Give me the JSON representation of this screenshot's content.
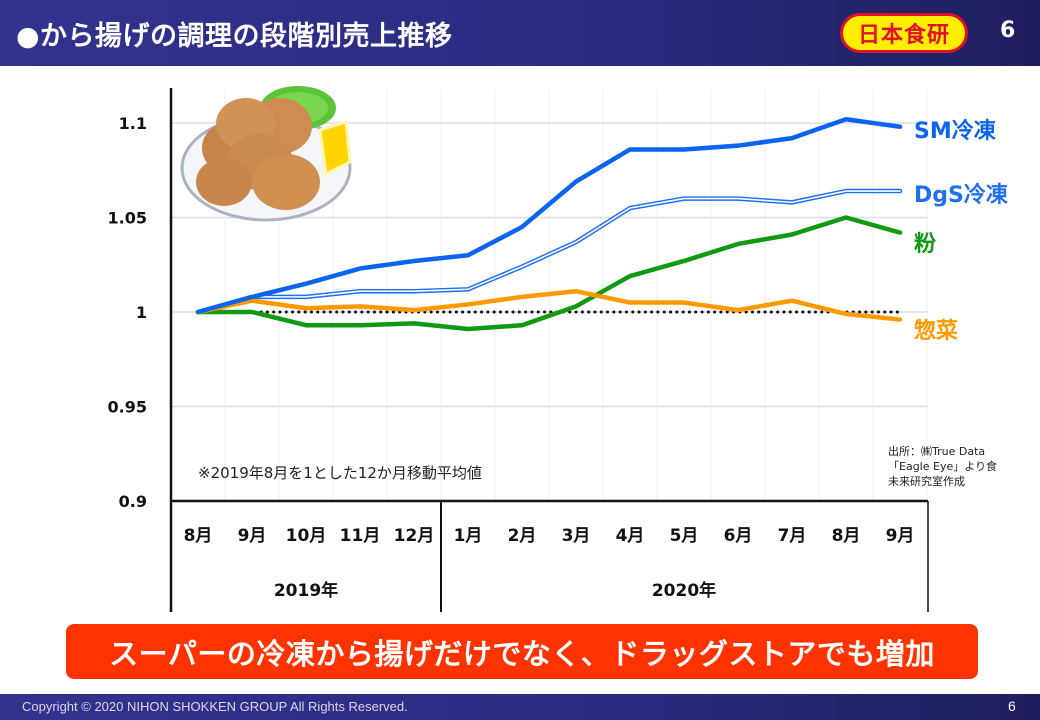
{
  "header": {
    "title": "●から揚げの調理の段階別売上推移",
    "logo_text": "日本食研",
    "page_number": "6"
  },
  "chart_data": {
    "type": "line",
    "title": "から揚げの調理の段階別売上推移",
    "xlabel": "",
    "ylabel": "",
    "ylim": [
      0.9,
      1.1
    ],
    "yticks": [
      0.9,
      0.95,
      1,
      1.05,
      1.1
    ],
    "ytick_labels": [
      "0.9",
      "0.95",
      "1",
      "1.05",
      "1.1"
    ],
    "grid": true,
    "categories": [
      "8月",
      "9月",
      "10月",
      "11月",
      "12月",
      "1月",
      "2月",
      "3月",
      "4月",
      "5月",
      "6月",
      "7月",
      "8月",
      "9月"
    ],
    "year_groups": [
      {
        "label": "2019年",
        "span": 5
      },
      {
        "label": "2020年",
        "span": 9
      }
    ],
    "baseline": 1.0,
    "series": [
      {
        "name": "SM冷凍",
        "color": "#0a64f0",
        "style": "thick",
        "values": [
          1.0,
          1.008,
          1.015,
          1.023,
          1.027,
          1.03,
          1.045,
          1.069,
          1.086,
          1.086,
          1.088,
          1.092,
          1.102,
          1.098
        ]
      },
      {
        "name": "DgS冷凍",
        "color": "#1f6ff0",
        "style": "double",
        "values": [
          1.0,
          1.008,
          1.008,
          1.011,
          1.011,
          1.012,
          1.024,
          1.037,
          1.055,
          1.06,
          1.06,
          1.058,
          1.064,
          1.064
        ]
      },
      {
        "name": "粉",
        "color": "#119911",
        "style": "thick",
        "values": [
          1.0,
          1.0,
          0.993,
          0.993,
          0.994,
          0.991,
          0.993,
          1.003,
          1.019,
          1.027,
          1.036,
          1.041,
          1.05,
          1.042
        ]
      },
      {
        "name": "惣菜",
        "color": "#ff9900",
        "style": "thick",
        "values": [
          1.0,
          1.006,
          1.002,
          1.003,
          1.001,
          1.004,
          1.008,
          1.011,
          1.005,
          1.005,
          1.001,
          1.006,
          0.999,
          0.996
        ]
      }
    ],
    "legend_placement": "right",
    "annotations": {
      "note": "※2019年8月を1とした12か月移動平均値",
      "source_lines": [
        "出所：㈱True Data",
        "「Eagle Eye」より食",
        "未来研究室作成"
      ]
    }
  },
  "banner": {
    "text": "スーパーの冷凍から揚げだけでなく、ドラッグストアでも増加"
  },
  "footer": {
    "copyright": "Copyright © 2020 NIHON SHOKKEN GROUP All Rights Reserved.",
    "page_number": "6"
  },
  "colors": {
    "header_bg": "#2e2e88",
    "banner_bg": "#ff3300",
    "logo_bg": "#ffee00",
    "logo_fg": "#e0102a"
  }
}
